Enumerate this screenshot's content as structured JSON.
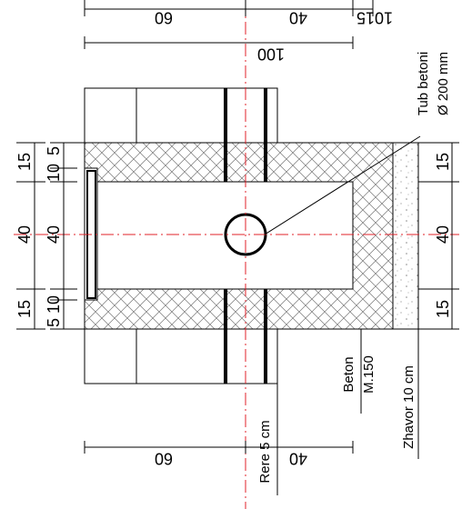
{
  "top_dims": {
    "a": "60",
    "b": "40",
    "c": "15",
    "d": "10",
    "total": "100"
  },
  "bottom_dims": {
    "a": "60",
    "b": "40"
  },
  "left_outer": {
    "top": "15",
    "middle": "40",
    "bottom": "15"
  },
  "left_inner": {
    "t1": "5",
    "t2": "10",
    "middle": "40",
    "b1": "10",
    "b2": "5"
  },
  "right_dims": {
    "top": "15",
    "middle": "40",
    "bottom": "15"
  },
  "labels": {
    "pipe": "Tub betoni",
    "pipe_size": "Ø 200 mm",
    "concrete": "Beton",
    "grade": "M.150",
    "gravel": "Zhavor 10 cm",
    "sand": "Rere 5 cm"
  }
}
